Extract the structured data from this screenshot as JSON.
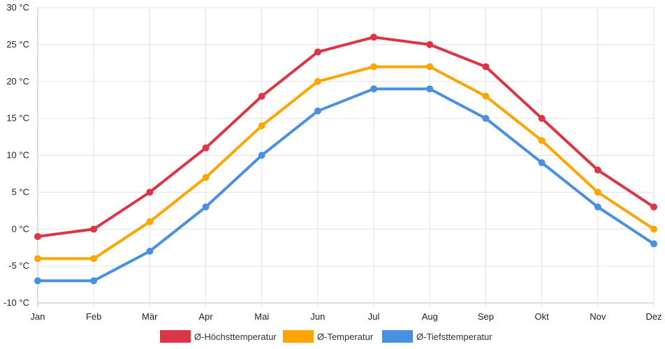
{
  "chart_data": {
    "type": "line",
    "categories": [
      "Jan",
      "Feb",
      "Mär",
      "Apr",
      "Mai",
      "Jun",
      "Jul",
      "Aug",
      "Sep",
      "Okt",
      "Nov",
      "Dez"
    ],
    "series": [
      {
        "name": "Ø-Höchsttemperatur",
        "color": "#dc3545",
        "values": [
          -1,
          0,
          5,
          11,
          18,
          24,
          26,
          25,
          22,
          15,
          8,
          3
        ]
      },
      {
        "name": "Ø-Temperatur",
        "color": "#ffa500",
        "values": [
          -4,
          -4,
          1,
          7,
          14,
          20,
          22,
          22,
          18,
          12,
          5,
          0
        ]
      },
      {
        "name": "Ø-Tiefsttemperatur",
        "color": "#4a90e2",
        "values": [
          -7,
          -7,
          -3,
          3,
          10,
          16,
          19,
          19,
          15,
          9,
          3,
          -2
        ]
      }
    ],
    "yticks": [
      "-10 °C",
      "-5 °C",
      "0 °C",
      "5 °C",
      "10 °C",
      "15 °C",
      "20 °C",
      "25 °C",
      "30 °C"
    ],
    "ylim": [
      -10,
      30
    ],
    "ystep": 5,
    "title": "",
    "xlabel": "",
    "ylabel": "",
    "legend_position": "bottom",
    "grid": true
  }
}
